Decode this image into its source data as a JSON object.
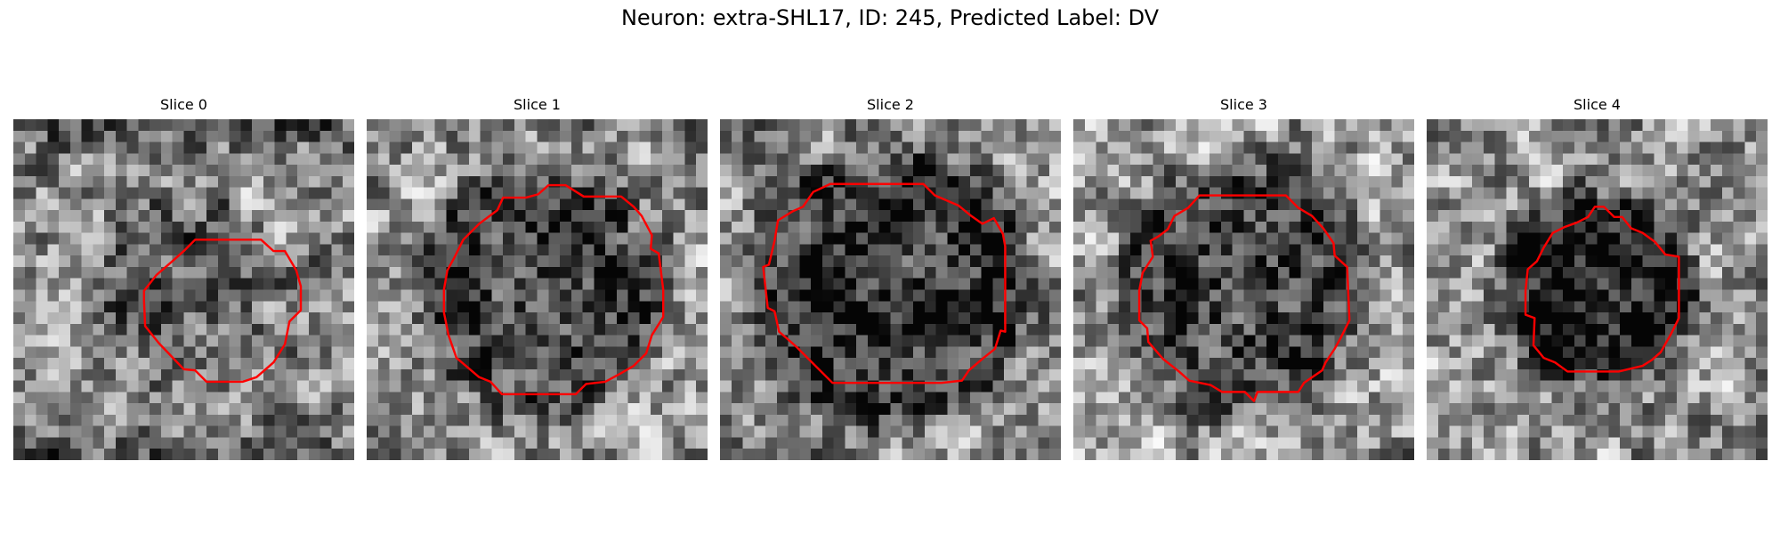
{
  "figure": {
    "title": "Neuron: extra-SHL17, ID: 245, Predicted Label: DV",
    "colormap": "gray",
    "contour_color": "#ff0000",
    "panels": [
      {
        "title": "Slice 0",
        "seed": 11,
        "base": 0.55,
        "blob_dark": 0.2,
        "blob_r": 0.21,
        "vignette_dark": 0.35
      },
      {
        "title": "Slice 1",
        "seed": 23,
        "base": 0.6,
        "blob_dark": 0.32,
        "blob_r": 0.31,
        "vignette_dark": 0.15
      },
      {
        "title": "Slice 2",
        "seed": 37,
        "base": 0.55,
        "blob_dark": 0.35,
        "blob_r": 0.35,
        "vignette_dark": 0.05
      },
      {
        "title": "Slice 3",
        "seed": 41,
        "base": 0.62,
        "blob_dark": 0.38,
        "blob_r": 0.31,
        "vignette_dark": 0.05
      },
      {
        "title": "Slice 4",
        "seed": 59,
        "base": 0.6,
        "blob_dark": 0.45,
        "blob_r": 0.23,
        "vignette_dark": 0.1
      }
    ]
  }
}
